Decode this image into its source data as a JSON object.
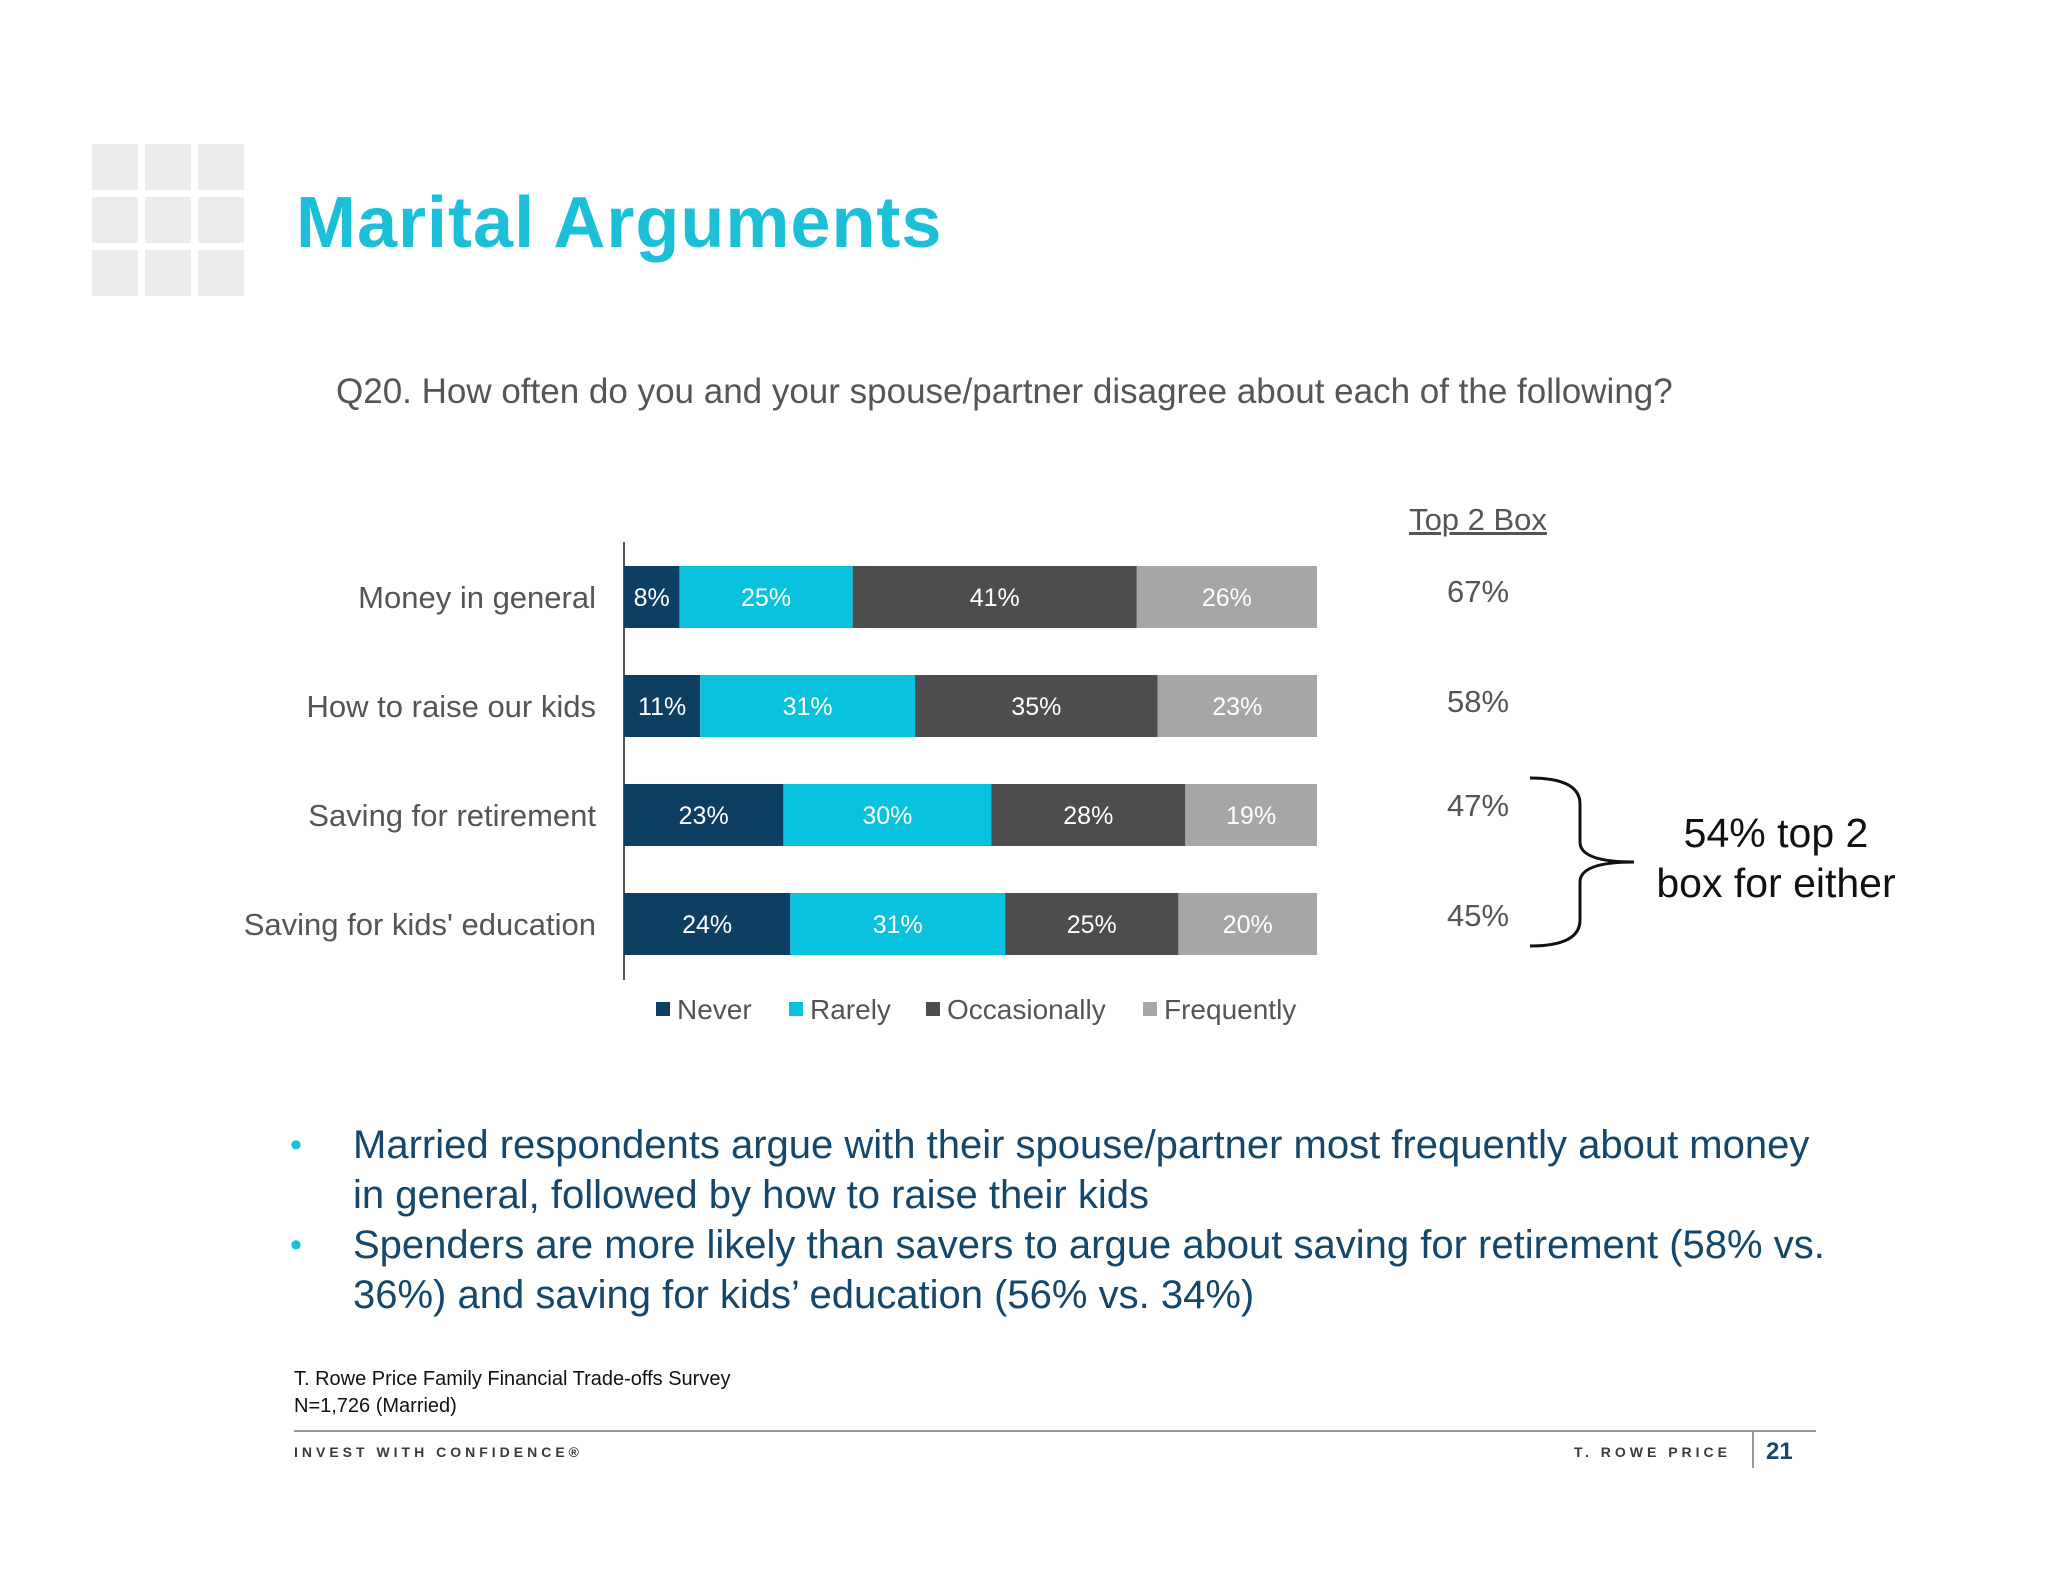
{
  "title": "Marital Arguments",
  "question": "Q20. How often do you and your spouse/partner disagree about each of the following?",
  "top2": {
    "header": "Top 2 Box",
    "values": [
      "67%",
      "58%",
      "47%",
      "45%"
    ]
  },
  "annotation": {
    "line1": "54% top 2",
    "line2": "box for either"
  },
  "chart_data": {
    "type": "bar",
    "orientation": "horizontal",
    "stacked": true,
    "categories": [
      "Money in general",
      "How to raise our kids",
      "Saving for retirement",
      "Saving for kids' education"
    ],
    "series": [
      {
        "name": "Never",
        "color": "#0d3f63",
        "label_color": "#ffffff",
        "values": [
          8,
          11,
          23,
          24
        ],
        "labels": [
          "8%",
          "11%",
          "23%",
          "24%"
        ]
      },
      {
        "name": "Rarely",
        "color": "#0ac2de",
        "label_color": "#ffffff",
        "values": [
          25,
          31,
          30,
          31
        ],
        "labels": [
          "25%",
          "31%",
          "30%",
          "31%"
        ]
      },
      {
        "name": "Occasionally",
        "color": "#4d4d50",
        "label_color": "#ffffff",
        "values": [
          41,
          35,
          28,
          25
        ],
        "labels": [
          "41%",
          "35%",
          "28%",
          "25%"
        ]
      },
      {
        "name": "Frequently",
        "color": "#a6a6a8",
        "label_color": "#ffffff",
        "values": [
          26,
          23,
          19,
          20
        ],
        "labels": [
          "26%",
          "23%",
          "19%",
          "20%"
        ]
      }
    ],
    "xlim": [
      0,
      100
    ],
    "legend_position": "bottom",
    "grid": false
  },
  "bullets": [
    {
      "text": "Married respondents argue with their spouse/partner most frequently about money in general, followed by how to raise their kids"
    },
    {
      "text": "Spenders are more likely than savers to argue about saving for retirement (58% vs. 36%) and saving for kids’ education (56% vs. 34%)"
    }
  ],
  "source": {
    "line1": "T. Rowe Price Family Financial Trade-offs Survey",
    "line2": "N=1,726 (Married)"
  },
  "footer": {
    "tagline": "INVEST WITH CONFIDENCE®",
    "brand": "T. ROWE PRICE",
    "page_number": "21"
  }
}
